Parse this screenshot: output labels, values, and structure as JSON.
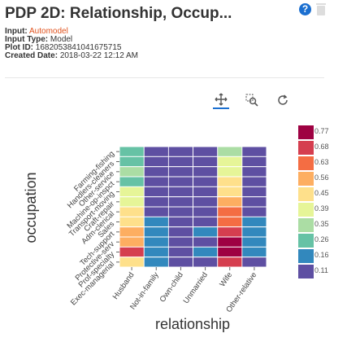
{
  "header": {
    "title": "PDP 2D: Relationship, Occup...",
    "help_icon": "help-icon",
    "trash_icon": "trash-icon"
  },
  "meta": {
    "input_label": "Input:",
    "input_value": "Automodel",
    "input_type_label": "Input Type:",
    "input_type_value": "Model",
    "plot_id_label": "Plot ID:",
    "plot_id_value": "1682053841041675715",
    "created_label": "Created Date:",
    "created_value": "2018-03-22 12:12 AM"
  },
  "toolbar": {
    "pan_icon": "pan-icon",
    "zoom_icon": "box-zoom-icon",
    "reset_icon": "reset-icon"
  },
  "colors": {
    "accent": "#1b6fd0",
    "link": "#e0501b"
  },
  "chart_data": {
    "type": "heatmap",
    "title": "",
    "xlabel": "relationship",
    "ylabel": "occupation",
    "x_categories": [
      "Husband",
      "Not-in-family",
      "Own-child",
      "Unmarried",
      "Wife",
      "Other-relative"
    ],
    "y_categories": [
      "Farming-fishing",
      "Handlers-cleaners",
      "Other-service",
      "Machine-op-inspct",
      "Transport-moving",
      "Craft-repair",
      "Adm-clerical",
      "Sales",
      "Tech-support",
      "Protective-serv",
      "Prof-specialty",
      "Exec-managerial"
    ],
    "values": [
      [
        0.26,
        0.11,
        0.11,
        0.11,
        0.35,
        0.11
      ],
      [
        0.26,
        0.11,
        0.11,
        0.11,
        0.39,
        0.11
      ],
      [
        0.35,
        0.11,
        0.11,
        0.11,
        0.39,
        0.11
      ],
      [
        0.26,
        0.11,
        0.11,
        0.11,
        0.45,
        0.11
      ],
      [
        0.39,
        0.11,
        0.11,
        0.11,
        0.45,
        0.11
      ],
      [
        0.39,
        0.11,
        0.11,
        0.11,
        0.56,
        0.11
      ],
      [
        0.45,
        0.11,
        0.11,
        0.11,
        0.63,
        0.11
      ],
      [
        0.45,
        0.16,
        0.11,
        0.11,
        0.63,
        0.16
      ],
      [
        0.56,
        0.16,
        0.11,
        0.16,
        0.68,
        0.16
      ],
      [
        0.56,
        0.16,
        0.11,
        0.11,
        0.77,
        0.16
      ],
      [
        0.68,
        0.16,
        0.11,
        0.16,
        0.77,
        0.16
      ],
      [
        0.45,
        0.16,
        0.11,
        0.11,
        0.68,
        0.11
      ]
    ],
    "legend": {
      "placement": "right",
      "labels": [
        "0.77",
        "0.68",
        "0.63",
        "0.56",
        "0.45",
        "0.39",
        "0.35",
        "0.26",
        "0.16",
        "0.11"
      ],
      "colors": [
        "#9e0142",
        "#d53e4f",
        "#f46d43",
        "#fdae61",
        "#fee08b",
        "#e6f598",
        "#abdda4",
        "#66c2a5",
        "#3288bd",
        "#5e4fa2"
      ]
    }
  }
}
